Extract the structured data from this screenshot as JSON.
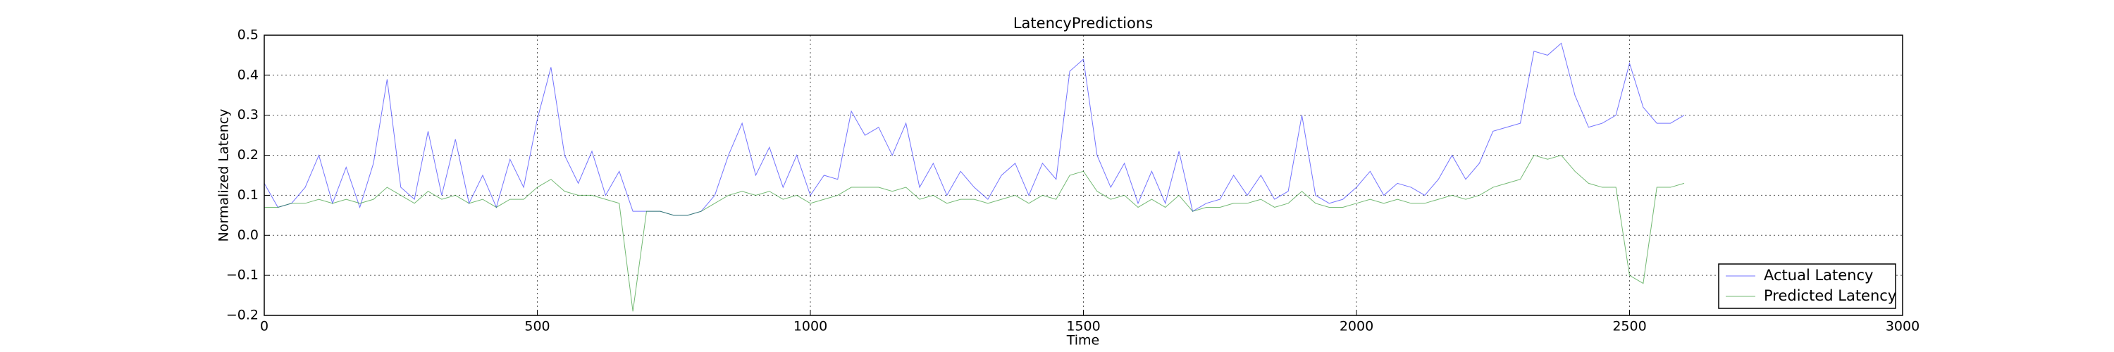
{
  "chart_data": {
    "type": "line",
    "title": "LatencyPredictions",
    "x_label": "Time",
    "y_label": "Normalized Latency",
    "x": [
      0,
      25,
      50,
      75,
      100,
      125,
      150,
      175,
      200,
      225,
      250,
      275,
      300,
      325,
      350,
      375,
      400,
      425,
      450,
      475,
      500,
      525,
      550,
      575,
      600,
      625,
      650,
      675,
      700,
      725,
      750,
      775,
      800,
      825,
      850,
      875,
      900,
      925,
      950,
      975,
      1000,
      1025,
      1050,
      1075,
      1100,
      1125,
      1150,
      1175,
      1200,
      1225,
      1250,
      1275,
      1300,
      1325,
      1350,
      1375,
      1400,
      1425,
      1450,
      1475,
      1500,
      1525,
      1550,
      1575,
      1600,
      1625,
      1650,
      1675,
      1700,
      1725,
      1750,
      1775,
      1800,
      1825,
      1850,
      1875,
      1900,
      1925,
      1950,
      1975,
      2000,
      2025,
      2050,
      2075,
      2100,
      2125,
      2150,
      2175,
      2200,
      2225,
      2250,
      2275,
      2300,
      2325,
      2350,
      2375,
      2400,
      2425,
      2450,
      2475,
      2500,
      2525,
      2550,
      2575,
      2600
    ],
    "series": [
      {
        "name": "Actual Latency",
        "color": "#0000ff",
        "values": [
          0.13,
          0.07,
          0.08,
          0.12,
          0.2,
          0.08,
          0.17,
          0.07,
          0.18,
          0.39,
          0.12,
          0.09,
          0.26,
          0.1,
          0.24,
          0.08,
          0.15,
          0.07,
          0.19,
          0.12,
          0.29,
          0.42,
          0.2,
          0.13,
          0.21,
          0.1,
          0.16,
          0.06,
          0.06,
          0.06,
          0.05,
          0.05,
          0.06,
          0.1,
          0.2,
          0.28,
          0.15,
          0.22,
          0.12,
          0.2,
          0.1,
          0.15,
          0.14,
          0.31,
          0.25,
          0.27,
          0.2,
          0.28,
          0.12,
          0.18,
          0.1,
          0.16,
          0.12,
          0.09,
          0.15,
          0.18,
          0.1,
          0.18,
          0.14,
          0.41,
          0.44,
          0.2,
          0.12,
          0.18,
          0.08,
          0.16,
          0.08,
          0.21,
          0.06,
          0.08,
          0.09,
          0.15,
          0.1,
          0.15,
          0.09,
          0.11,
          0.3,
          0.1,
          0.08,
          0.09,
          0.12,
          0.16,
          0.1,
          0.13,
          0.12,
          0.1,
          0.14,
          0.2,
          0.14,
          0.18,
          0.26,
          0.27,
          0.28,
          0.46,
          0.45,
          0.48,
          0.35,
          0.27,
          0.28,
          0.3,
          0.43,
          0.32,
          0.28,
          0.28,
          0.3
        ]
      },
      {
        "name": "Predicted Latency",
        "color": "#008000",
        "values": [
          0.07,
          0.07,
          0.08,
          0.08,
          0.09,
          0.08,
          0.09,
          0.08,
          0.09,
          0.12,
          0.1,
          0.08,
          0.11,
          0.09,
          0.1,
          0.08,
          0.09,
          0.07,
          0.09,
          0.09,
          0.12,
          0.14,
          0.11,
          0.1,
          0.1,
          0.09,
          0.08,
          -0.19,
          0.06,
          0.06,
          0.05,
          0.05,
          0.06,
          0.08,
          0.1,
          0.11,
          0.1,
          0.11,
          0.09,
          0.1,
          0.08,
          0.09,
          0.1,
          0.12,
          0.12,
          0.12,
          0.11,
          0.12,
          0.09,
          0.1,
          0.08,
          0.09,
          0.09,
          0.08,
          0.09,
          0.1,
          0.08,
          0.1,
          0.09,
          0.15,
          0.16,
          0.11,
          0.09,
          0.1,
          0.07,
          0.09,
          0.07,
          0.1,
          0.06,
          0.07,
          0.07,
          0.08,
          0.08,
          0.09,
          0.07,
          0.08,
          0.11,
          0.08,
          0.07,
          0.07,
          0.08,
          0.09,
          0.08,
          0.09,
          0.08,
          0.08,
          0.09,
          0.1,
          0.09,
          0.1,
          0.12,
          0.13,
          0.14,
          0.2,
          0.19,
          0.2,
          0.16,
          0.13,
          0.12,
          0.12,
          -0.1,
          -0.12,
          0.12,
          0.12,
          0.13
        ]
      }
    ],
    "xlim": [
      0,
      3000
    ],
    "xticks": [
      0,
      500,
      1000,
      1500,
      2000,
      2500,
      3000
    ],
    "ylim": [
      -0.2,
      0.5
    ],
    "yticks": [
      {
        "value": -0.2,
        "label": "−0.2"
      },
      {
        "value": -0.1,
        "label": "−0.1"
      },
      {
        "value": 0,
        "label": "0.0"
      },
      0.1,
      0.2,
      0.3,
      0.4,
      0.5
    ],
    "grid": true,
    "legend": "lower right"
  }
}
